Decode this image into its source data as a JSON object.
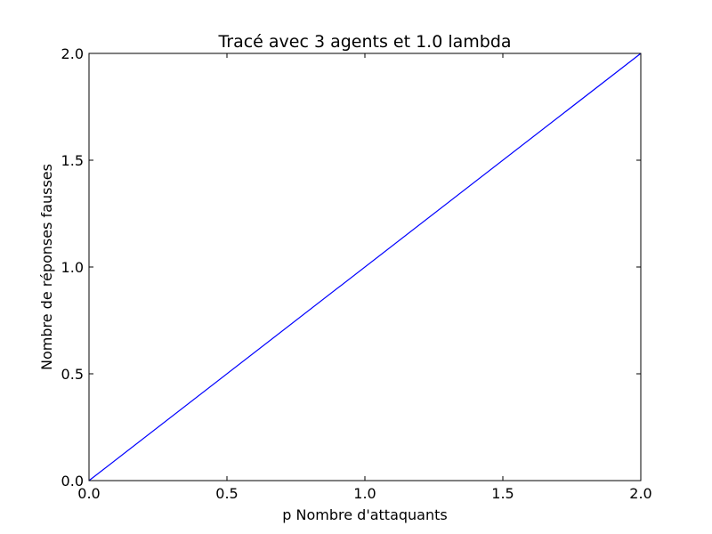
{
  "chart_data": {
    "type": "line",
    "title": "Tracé avec 3 agents et 1.0 lambda",
    "xlabel": "p Nombre d'attaquants",
    "ylabel": "Nombre de réponses fausses",
    "xlim": [
      0.0,
      2.0
    ],
    "ylim": [
      0.0,
      2.0
    ],
    "x_ticks": [
      "0.0",
      "0.5",
      "1.0",
      "1.5",
      "2.0"
    ],
    "y_ticks": [
      "0.0",
      "0.5",
      "1.0",
      "1.5",
      "2.0"
    ],
    "grid": false,
    "legend": "none",
    "series": [
      {
        "color": "#0000ff",
        "x": [
          0.0,
          2.0
        ],
        "y": [
          0.0,
          2.0
        ]
      }
    ]
  },
  "colors": {
    "line": "#0000ff",
    "frame": "#000000",
    "background": "#ffffff"
  }
}
